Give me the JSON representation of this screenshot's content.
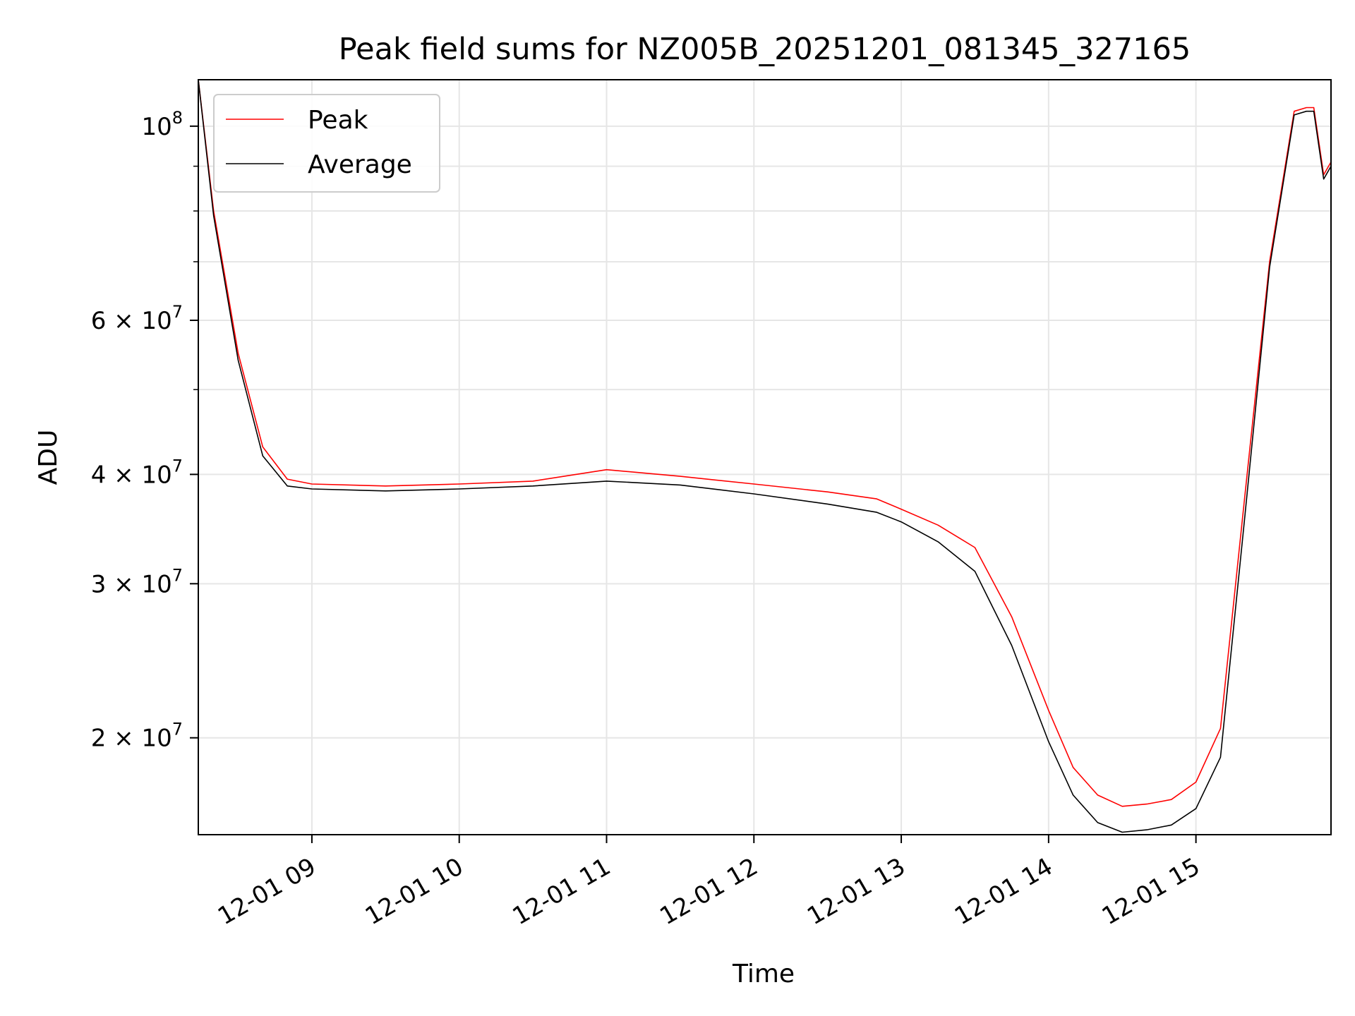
{
  "chart_data": {
    "type": "line",
    "title": "Peak field sums for NZ005B_20251201_081345_327165",
    "xlabel": "Time",
    "ylabel": "ADU",
    "yscale": "log",
    "xlim": [
      "2025-12-01T08:13:45",
      "2025-12-01T15:55:00"
    ],
    "ylim": [
      15500000,
      113000000
    ],
    "x_ticks": [
      {
        "x": "2025-12-01T09:00",
        "label": "12-01 09"
      },
      {
        "x": "2025-12-01T10:00",
        "label": "12-01 10"
      },
      {
        "x": "2025-12-01T11:00",
        "label": "12-01 11"
      },
      {
        "x": "2025-12-01T12:00",
        "label": "12-01 12"
      },
      {
        "x": "2025-12-01T13:00",
        "label": "12-01 13"
      },
      {
        "x": "2025-12-01T14:00",
        "label": "12-01 14"
      },
      {
        "x": "2025-12-01T15:00",
        "label": "12-01 15"
      }
    ],
    "y_ticks": [
      {
        "value": 20000000,
        "base": "2",
        "exp": "7"
      },
      {
        "value": 30000000,
        "base": "3",
        "exp": "7"
      },
      {
        "value": 40000000,
        "base": "4",
        "exp": "7"
      },
      {
        "value": 60000000,
        "base": "6",
        "exp": "7"
      },
      {
        "value": 100000000,
        "base": "10",
        "exp": "8"
      }
    ],
    "grid": true,
    "legend": "upper-left",
    "series": [
      {
        "name": "Peak",
        "color": "#ff0000",
        "x": [
          "2025-12-01T08:13:45",
          "2025-12-01T08:20",
          "2025-12-01T08:30",
          "2025-12-01T08:40",
          "2025-12-01T08:50",
          "2025-12-01T09:00",
          "2025-12-01T09:30",
          "2025-12-01T10:00",
          "2025-12-01T10:30",
          "2025-12-01T11:00",
          "2025-12-01T11:30",
          "2025-12-01T12:00",
          "2025-12-01T12:30",
          "2025-12-01T12:50",
          "2025-12-01T13:00",
          "2025-12-01T13:15",
          "2025-12-01T13:30",
          "2025-12-01T13:45",
          "2025-12-01T14:00",
          "2025-12-01T14:10",
          "2025-12-01T14:20",
          "2025-12-01T14:30",
          "2025-12-01T14:40",
          "2025-12-01T14:50",
          "2025-12-01T15:00",
          "2025-12-01T15:10",
          "2025-12-01T15:20",
          "2025-12-01T15:30",
          "2025-12-01T15:40",
          "2025-12-01T15:45",
          "2025-12-01T15:48",
          "2025-12-01T15:52",
          "2025-12-01T15:55"
        ],
        "values": [
          113000000,
          80000000,
          55000000,
          43000000,
          39500000,
          39000000,
          38800000,
          39000000,
          39300000,
          40500000,
          39800000,
          39000000,
          38200000,
          37500000,
          36500000,
          35000000,
          33000000,
          27500000,
          21500000,
          18500000,
          17200000,
          16700000,
          16800000,
          17000000,
          17800000,
          20500000,
          38000000,
          70000000,
          104000000,
          105000000,
          105000000,
          88000000,
          91000000
        ]
      },
      {
        "name": "Average",
        "color": "#000000",
        "x": [
          "2025-12-01T08:13:45",
          "2025-12-01T08:20",
          "2025-12-01T08:30",
          "2025-12-01T08:40",
          "2025-12-01T08:50",
          "2025-12-01T09:00",
          "2025-12-01T09:30",
          "2025-12-01T10:00",
          "2025-12-01T10:30",
          "2025-12-01T11:00",
          "2025-12-01T11:30",
          "2025-12-01T12:00",
          "2025-12-01T12:30",
          "2025-12-01T12:50",
          "2025-12-01T13:00",
          "2025-12-01T13:15",
          "2025-12-01T13:30",
          "2025-12-01T13:45",
          "2025-12-01T14:00",
          "2025-12-01T14:10",
          "2025-12-01T14:20",
          "2025-12-01T14:30",
          "2025-12-01T14:40",
          "2025-12-01T14:50",
          "2025-12-01T15:00",
          "2025-12-01T15:10",
          "2025-12-01T15:20",
          "2025-12-01T15:30",
          "2025-12-01T15:40",
          "2025-12-01T15:45",
          "2025-12-01T15:48",
          "2025-12-01T15:52",
          "2025-12-01T15:55"
        ],
        "values": [
          113000000,
          79000000,
          54000000,
          42000000,
          38800000,
          38500000,
          38300000,
          38500000,
          38800000,
          39300000,
          38900000,
          38000000,
          37000000,
          36200000,
          35300000,
          33500000,
          31000000,
          25500000,
          19800000,
          17200000,
          16000000,
          15600000,
          15700000,
          15900000,
          16600000,
          19000000,
          36000000,
          69000000,
          103000000,
          104000000,
          104000000,
          87000000,
          90000000
        ]
      }
    ]
  }
}
